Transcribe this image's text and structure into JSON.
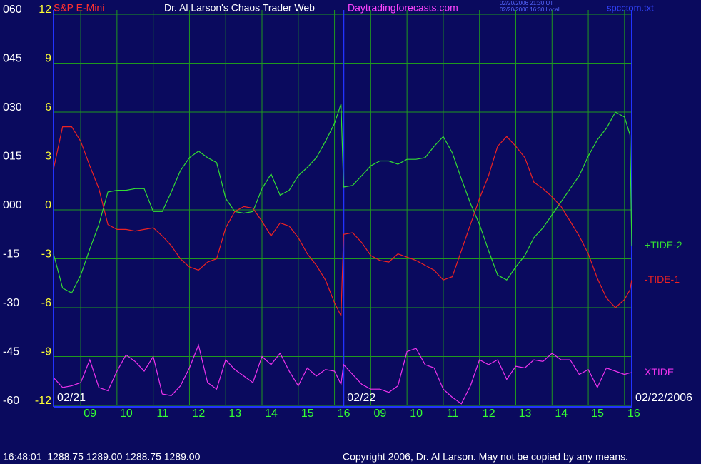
{
  "chart_data": {
    "type": "line",
    "title": "Dr. Al Larson's Chaos Trader Web",
    "instrument": "S&P E-Mini",
    "website": "Daytradingforecasts.com",
    "timestamps": [
      "02/20/2006 21:30 UT",
      "02/20/2006 16:30 Local"
    ],
    "filename": "spcctom.txt",
    "status_line": "16:48:01  1288.75 1289.00 1288.75 1289.00",
    "copyright": "Copyright 2006, Dr. Al Larson. May not be copied by any means.",
    "grid": true,
    "xlim": [
      0,
      15.95
    ],
    "ylim": [
      -12,
      12
    ],
    "y2lim": [
      -60,
      60
    ],
    "yticks": [
      12,
      9,
      6,
      3,
      0,
      -3,
      -6,
      -9,
      -12
    ],
    "y2ticks": [
      {
        "value": 60,
        "label": "060"
      },
      {
        "value": 45,
        "label": "045"
      },
      {
        "value": 30,
        "label": "030"
      },
      {
        "value": 15,
        "label": "015"
      },
      {
        "value": 0,
        "label": "000"
      },
      -15,
      -30,
      -45,
      -60
    ],
    "xticks": [
      {
        "value": 0.75,
        "label": "09"
      },
      {
        "value": 1.75,
        "label": "10"
      },
      {
        "value": 2.75,
        "label": "11"
      },
      {
        "value": 3.75,
        "label": "12"
      },
      {
        "value": 4.75,
        "label": "13"
      },
      {
        "value": 5.75,
        "label": "14"
      },
      {
        "value": 6.75,
        "label": "15"
      },
      {
        "value": 7.75,
        "label": "16"
      },
      {
        "value": 8.75,
        "label": "09"
      },
      {
        "value": 9.75,
        "label": "10"
      },
      {
        "value": 10.75,
        "label": "11"
      },
      {
        "value": 11.75,
        "label": "12"
      },
      {
        "value": 12.75,
        "label": "13"
      },
      {
        "value": 13.75,
        "label": "14"
      },
      {
        "value": 14.75,
        "label": "15"
      },
      {
        "value": 15.75,
        "label": "16"
      }
    ],
    "dates": [
      {
        "label": "02/21",
        "x": 0
      },
      {
        "label": "02/22",
        "x": 8
      },
      {
        "label": "02/22/2006",
        "x": 15.95
      }
    ],
    "x": [
      0,
      0.25,
      0.5,
      0.75,
      1,
      1.25,
      1.5,
      1.75,
      2,
      2.25,
      2.5,
      2.75,
      3,
      3.25,
      3.5,
      3.75,
      4,
      4.25,
      4.5,
      4.75,
      5,
      5.25,
      5.5,
      5.75,
      6,
      6.25,
      6.5,
      6.75,
      7,
      7.25,
      7.5,
      7.75,
      7.93,
      8,
      8.25,
      8.5,
      8.75,
      9,
      9.25,
      9.5,
      9.75,
      10,
      10.25,
      10.5,
      10.75,
      11,
      11.25,
      11.5,
      11.75,
      12,
      12.25,
      12.5,
      12.75,
      13,
      13.25,
      13.5,
      13.75,
      14,
      14.25,
      14.5,
      14.75,
      15,
      15.25,
      15.5,
      15.75,
      15.9,
      15.95
    ],
    "series": [
      {
        "name": "+TIDE-2",
        "color": "#33dd33",
        "values": [
          -2.7,
          -4.8,
          -5.1,
          -4.0,
          -2.4,
          -0.9,
          1.1,
          1.2,
          1.2,
          1.3,
          1.3,
          -0.1,
          -0.1,
          1.1,
          2.4,
          3.2,
          3.6,
          3.2,
          2.9,
          0.7,
          -0.1,
          -0.2,
          -0.1,
          1.3,
          2.2,
          0.9,
          1.2,
          2.1,
          2.6,
          3.2,
          4.2,
          5.3,
          6.5,
          1.4,
          1.5,
          2.1,
          2.7,
          3.0,
          3.0,
          2.8,
          3.1,
          3.1,
          3.2,
          3.9,
          4.5,
          3.5,
          1.9,
          0.4,
          -0.9,
          -2.5,
          -4.0,
          -4.3,
          -3.5,
          -2.8,
          -1.7,
          -1.1,
          -0.3,
          0.5,
          1.3,
          2.1,
          3.3,
          4.3,
          5.0,
          6.0,
          5.7,
          4.6,
          -2.2
        ]
      },
      {
        "name": "-TIDE-1",
        "color": "#ee2222",
        "values": [
          2.5,
          5.1,
          5.1,
          4.2,
          2.7,
          1.3,
          -0.9,
          -1.2,
          -1.2,
          -1.3,
          -1.2,
          -1.1,
          -1.6,
          -2.2,
          -3.0,
          -3.5,
          -3.7,
          -3.2,
          -3.0,
          -1.1,
          -0.1,
          0.2,
          0.1,
          -0.7,
          -1.6,
          -0.8,
          -1.0,
          -1.7,
          -2.7,
          -3.4,
          -4.3,
          -5.7,
          -6.5,
          -1.5,
          -1.4,
          -2.0,
          -2.8,
          -3.1,
          -3.2,
          -2.7,
          -2.9,
          -3.1,
          -3.4,
          -3.7,
          -4.3,
          -4.1,
          -2.5,
          -0.9,
          0.7,
          2.1,
          3.9,
          4.5,
          3.9,
          3.2,
          1.7,
          1.3,
          0.8,
          0.2,
          -0.7,
          -1.6,
          -2.7,
          -4.2,
          -5.4,
          -6.0,
          -5.5,
          -4.9,
          -4.3
        ]
      },
      {
        "name": "XTIDE",
        "color": "#ee33ee",
        "values": [
          -10.3,
          -10.9,
          -10.8,
          -10.6,
          -9.2,
          -10.9,
          -11.1,
          -9.9,
          -8.9,
          -9.3,
          -9.9,
          -9.0,
          -11.3,
          -11.4,
          -10.8,
          -9.7,
          -8.3,
          -10.6,
          -11.0,
          -9.2,
          -9.8,
          -10.2,
          -10.6,
          -9.0,
          -9.5,
          -8.8,
          -9.9,
          -10.8,
          -9.7,
          -10.2,
          -9.8,
          -9.9,
          -10.7,
          -9.5,
          -10.1,
          -10.7,
          -11.0,
          -11.0,
          -11.2,
          -10.8,
          -8.7,
          -8.5,
          -9.5,
          -9.7,
          -11.0,
          -11.5,
          -11.9,
          -10.8,
          -9.2,
          -9.5,
          -9.2,
          -10.4,
          -9.6,
          -9.7,
          -9.2,
          -9.3,
          -8.8,
          -9.2,
          -9.2,
          -10.1,
          -9.8,
          -10.9,
          -9.7,
          -9.9,
          -10.1,
          -10.0,
          -10.0
        ]
      }
    ]
  }
}
